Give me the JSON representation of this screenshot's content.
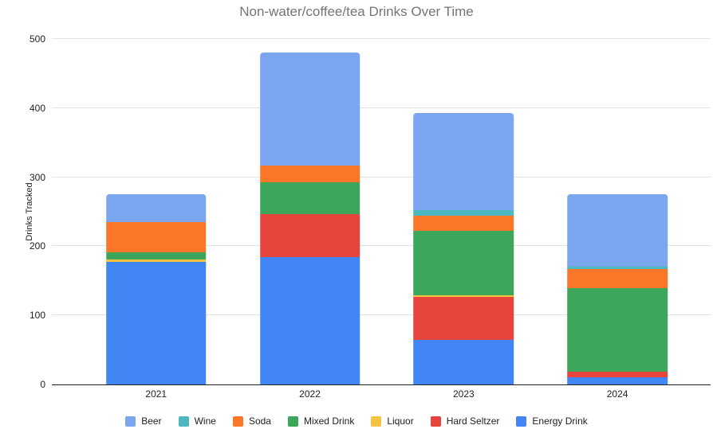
{
  "title": "Non-water/coffee/tea Drinks Over Time",
  "colors": {
    "title_text": "#757575",
    "axis_text": "#212121",
    "gridline": "#e2e2e2",
    "zero_line": "#212121",
    "background": "#ffffff"
  },
  "chart_data": {
    "type": "bar",
    "stacked": true,
    "title": "Non-water/coffee/tea Drinks Over Time",
    "xlabel": "",
    "ylabel": "Drinks Tracked",
    "categories": [
      "2021",
      "2022",
      "2023",
      "2024"
    ],
    "series": [
      {
        "name": "Energy Drink",
        "color": "#4285f4",
        "values": [
          178,
          184,
          64,
          10
        ]
      },
      {
        "name": "Hard Seltzer",
        "color": "#e5453c",
        "values": [
          0,
          62,
          63,
          9
        ]
      },
      {
        "name": "Liquor",
        "color": "#f5c342",
        "values": [
          3,
          0,
          2,
          0
        ]
      },
      {
        "name": "Mixed Drink",
        "color": "#3ca65b",
        "values": [
          10,
          47,
          93,
          121
        ]
      },
      {
        "name": "Soda",
        "color": "#fa7628",
        "values": [
          44,
          24,
          22,
          27
        ]
      },
      {
        "name": "Wine",
        "color": "#4db8c0",
        "values": [
          0,
          0,
          8,
          4
        ]
      },
      {
        "name": "Beer",
        "color": "#7aa6f0",
        "values": [
          40,
          163,
          141,
          105
        ]
      }
    ],
    "totals_by_year": [
      275,
      480,
      393,
      276
    ],
    "ylim": [
      0,
      500
    ],
    "yticks": [
      0,
      100,
      200,
      300,
      400,
      500
    ],
    "grid": true,
    "legend": {
      "position": "bottom",
      "order": [
        "Beer",
        "Wine",
        "Soda",
        "Mixed Drink",
        "Liquor",
        "Hard Seltzer",
        "Energy Drink"
      ]
    }
  }
}
